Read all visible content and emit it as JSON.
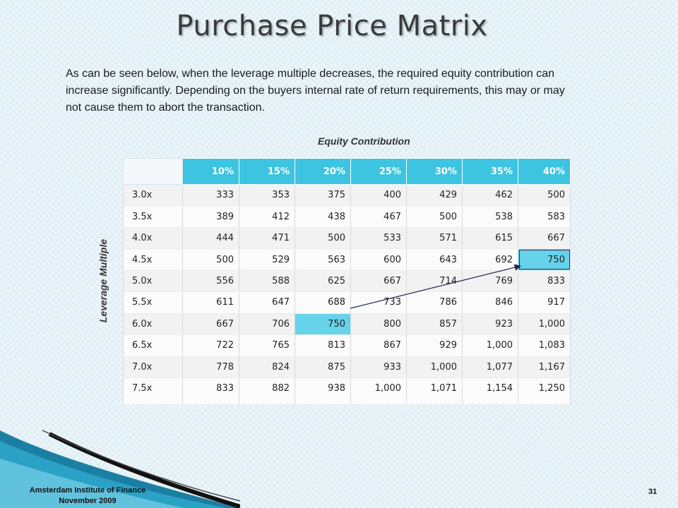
{
  "slide": {
    "title": "Purchase Price Matrix",
    "intro": "As can be seen below, when the leverage multiple decreases, the required equity contribution can increase significantly.  Depending on the buyers internal rate of return requirements, this may or may not cause them to abort the transaction.",
    "column_axis_label": "Equity Contribution",
    "row_axis_label": "Leverage Multiple",
    "footer_org": "Amsterdam Institute of Finance",
    "footer_date": "November 2009",
    "page_number": "31"
  },
  "matrix": {
    "columns": [
      "10%",
      "15%",
      "20%",
      "25%",
      "30%",
      "35%",
      "40%"
    ],
    "rows": [
      {
        "label": "3.0x",
        "values": [
          "333",
          "353",
          "375",
          "400",
          "429",
          "462",
          "500"
        ]
      },
      {
        "label": "3.5x",
        "values": [
          "389",
          "412",
          "438",
          "467",
          "500",
          "538",
          "583"
        ]
      },
      {
        "label": "4.0x",
        "values": [
          "444",
          "471",
          "500",
          "533",
          "571",
          "615",
          "667"
        ]
      },
      {
        "label": "4.5x",
        "values": [
          "500",
          "529",
          "563",
          "600",
          "643",
          "692",
          "750"
        ]
      },
      {
        "label": "5.0x",
        "values": [
          "556",
          "588",
          "625",
          "667",
          "714",
          "769",
          "833"
        ]
      },
      {
        "label": "5.5x",
        "values": [
          "611",
          "647",
          "688",
          "733",
          "786",
          "846",
          "917"
        ]
      },
      {
        "label": "6.0x",
        "values": [
          "667",
          "706",
          "750",
          "800",
          "857",
          "923",
          "1,000"
        ]
      },
      {
        "label": "6.5x",
        "values": [
          "722",
          "765",
          "813",
          "867",
          "929",
          "1,000",
          "1,083"
        ]
      },
      {
        "label": "7.0x",
        "values": [
          "778",
          "824",
          "875",
          "933",
          "1,000",
          "1,077",
          "1,167"
        ]
      },
      {
        "label": "7.5x",
        "values": [
          "833",
          "882",
          "938",
          "1,000",
          "1,071",
          "1,154",
          "1,250"
        ]
      }
    ],
    "highlighted_cells": [
      {
        "row": "4.5x",
        "column": "40%",
        "value": "750"
      },
      {
        "row": "6.0x",
        "column": "20%",
        "value": "750"
      }
    ],
    "highlight_color": "#66d3ea",
    "header_color": "#3cc4e0"
  }
}
